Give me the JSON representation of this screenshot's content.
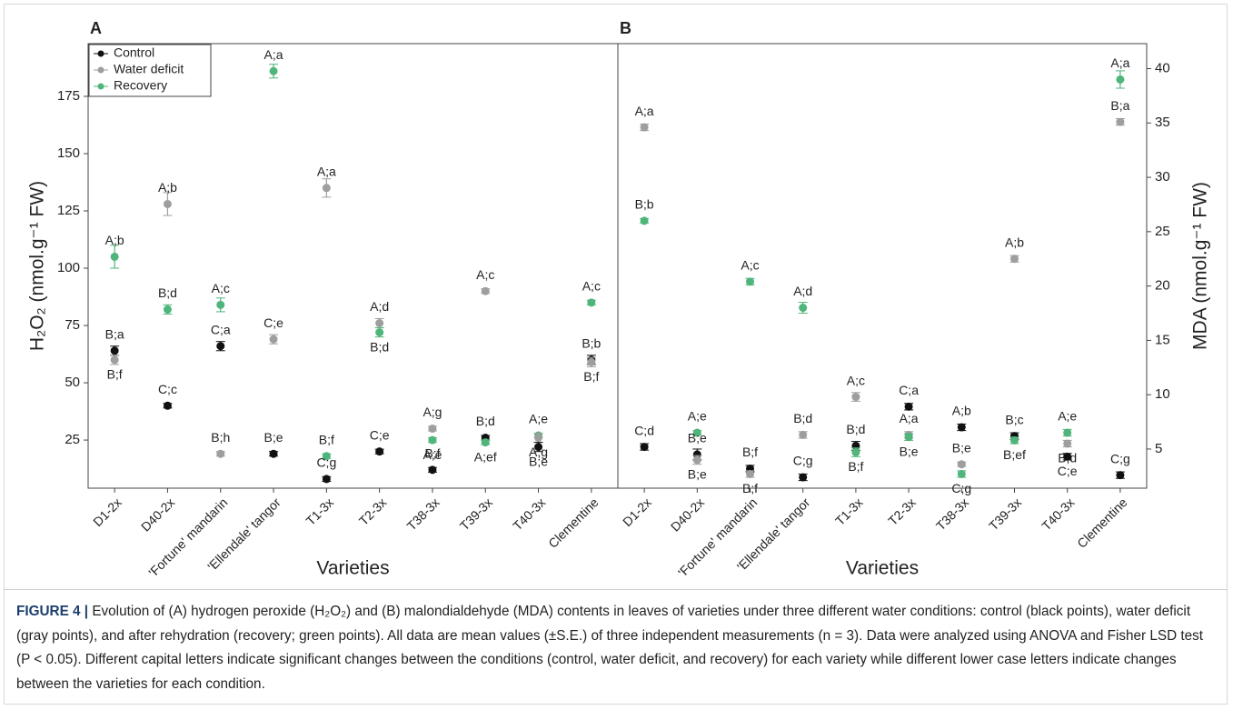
{
  "chart_data": [
    {
      "type": "scatter",
      "panel": "A",
      "y_label": "H₂O₂ (nmol.g⁻¹ FW)",
      "x_label": "Varieties",
      "y_axis": "left",
      "legend": "upper left",
      "categories": [
        "D1-2x",
        "D40-2x",
        "'Fortune' mandarin",
        "'Ellendale' tangor",
        "T1-3x",
        "T2-3x",
        "T38-3x",
        "T39-3x",
        "T40-3x",
        "Clementine"
      ],
      "ylim": [
        4,
        198
      ],
      "yticks": [
        25,
        50,
        75,
        100,
        125,
        150,
        175
      ],
      "series": [
        {
          "name": "Control",
          "color": "#111111",
          "values": [
            64,
            40,
            66,
            19,
            8,
            20,
            12,
            26,
            22,
            60
          ],
          "errors": [
            2,
            1,
            2,
            1,
            1,
            1,
            1,
            1,
            2,
            2
          ],
          "letters": [
            "B;a",
            "C;c",
            "C;a",
            "B;e",
            "C;g",
            "C;e",
            "B;f",
            "B;d",
            "B;e",
            "B;b"
          ]
        },
        {
          "name": "Water deficit",
          "color": "#9e9e9e",
          "values": [
            60,
            128,
            19,
            69,
            135,
            76,
            30,
            90,
            26,
            59
          ],
          "errors": [
            2,
            5,
            1,
            2,
            4,
            2,
            1,
            1,
            2,
            2
          ],
          "letters": [
            "B;f",
            "A;b",
            "B;h",
            "C;e",
            "A;a",
            "A;d",
            "A;g",
            "A;c",
            "A;g",
            "B;f"
          ]
        },
        {
          "name": "Recovery",
          "color": "#4fb57a",
          "values": [
            105,
            82,
            84,
            186,
            18,
            72,
            25,
            24,
            27,
            85
          ],
          "errors": [
            5,
            2,
            3,
            3,
            1,
            2,
            1,
            1,
            1,
            1
          ],
          "letters": [
            "A;b",
            "B;d",
            "A;c",
            "A;a",
            "B;f",
            "B;d",
            "A;e",
            "A;ef",
            "A;e",
            "A;c"
          ]
        }
      ]
    },
    {
      "type": "scatter",
      "panel": "B",
      "y_label": "MDA (nmol.g⁻¹ FW)",
      "x_label": "Varieties",
      "y_axis": "right",
      "categories": [
        "D1-2x",
        "D40-2x",
        "'Fortune' mandarin",
        "'Ellendale' tangor",
        "T1-3x",
        "T2-3x",
        "T38-3x",
        "T39-3x",
        "T40-3x",
        "Clementine"
      ],
      "ylim": [
        1.4,
        42.3
      ],
      "yticks": [
        5,
        10,
        15,
        20,
        25,
        30,
        35,
        40
      ],
      "series": [
        {
          "color": "#111111",
          "values": [
            5.2,
            4.5,
            3.2,
            2.4,
            5.3,
            8.9,
            7.0,
            6.2,
            4.3,
            2.6
          ],
          "errors": [
            0.3,
            0.5,
            0.3,
            0.3,
            0.4,
            0.3,
            0.3,
            0.3,
            0.3,
            0.3
          ],
          "letters": [
            "C;d",
            "B;e",
            "B;f",
            "C;g",
            "B;d",
            "C;a",
            "A;b",
            "B;c",
            "C;e",
            "C;g"
          ]
        },
        {
          "color": "#9e9e9e",
          "values": [
            34.6,
            4.0,
            2.7,
            6.3,
            9.8,
            6.3,
            3.6,
            22.5,
            5.5,
            35.1
          ],
          "errors": [
            0.3,
            0.4,
            0.3,
            0.3,
            0.4,
            0.3,
            0.2,
            0.3,
            0.3,
            0.3
          ],
          "letters": [
            "A;a",
            "B;e",
            "B;f",
            "B;d",
            "A;c",
            "A;a",
            "B;e",
            "A;b",
            "B;d",
            "B;a"
          ]
        },
        {
          "color": "#4fb57a",
          "values": [
            26,
            6.5,
            20.4,
            18,
            4.7,
            6.1,
            2.7,
            5.8,
            6.5,
            39
          ],
          "errors": [
            0.2,
            0.2,
            0.3,
            0.5,
            0.4,
            0.3,
            0.3,
            0.3,
            0.3,
            0.8
          ],
          "letters": [
            "B;b",
            "A;e",
            "A;c",
            "A;d",
            "B;f",
            "B;e",
            "C;g",
            "B;ef",
            "A;e",
            "A;a"
          ]
        }
      ]
    }
  ],
  "caption": {
    "label": "FIGURE 4 |",
    "text": "Evolution of (A) hydrogen peroxide (H₂O₂) and (B) malondialdehyde (MDA) contents in leaves of varieties under three different water conditions: control (black points), water deficit (gray points), and after rehydration (recovery; green points). All data are mean values (±S.E.) of three independent measurements (n = 3). Data were analyzed using ANOVA and Fisher LSD test (P < 0.05). Different capital letters indicate significant changes between the conditions (control, water deficit, and recovery) for each variety while different lower case letters indicate changes between the varieties for each condition."
  }
}
